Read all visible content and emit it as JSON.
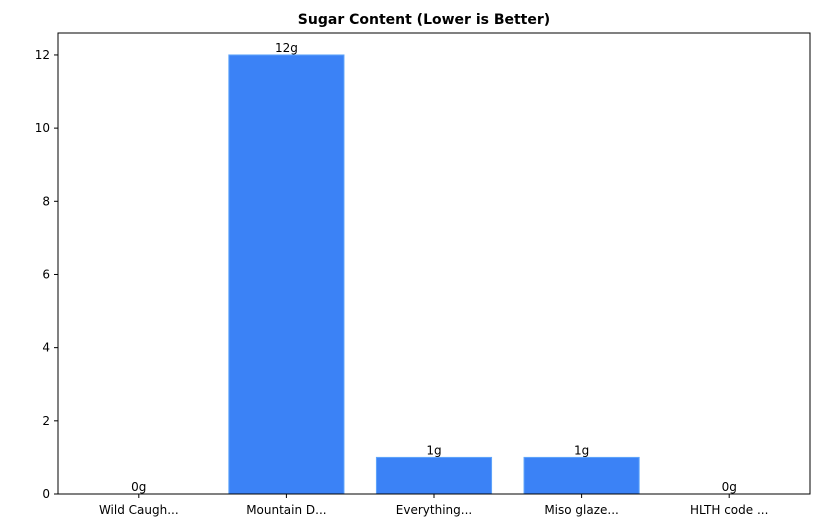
{
  "chart_data": {
    "type": "bar",
    "title": "Sugar Content (Lower is Better)",
    "xlabel": "",
    "ylabel": "",
    "categories": [
      "Wild Caugh...",
      "Mountain D...",
      "Everything...",
      "Miso glaze...",
      "HLTH code ..."
    ],
    "values": [
      0,
      12,
      1,
      1,
      0
    ],
    "data_labels": [
      "0g",
      "12g",
      "1g",
      "1g",
      "0g"
    ],
    "yticks": [
      0,
      2,
      4,
      6,
      8,
      10,
      12
    ],
    "ylim": [
      0,
      12.6
    ],
    "grid": false,
    "legend": "none",
    "bar_color": "#3b82f6",
    "bar_edge_color": "#60a5fa"
  }
}
